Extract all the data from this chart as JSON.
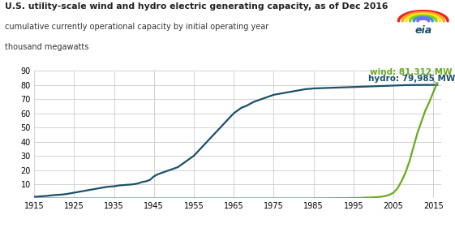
{
  "title": "U.S. utility-scale wind and hydro electric generating capacity, as of Dec 2016",
  "subtitle1": "cumulative currently operational capacity by initial operating year",
  "subtitle2": "thousand megawatts",
  "hydro_color": "#1b5068",
  "wind_color": "#6aaa1e",
  "annotation_wind": "wind: 81,312 MW",
  "annotation_hydro": "hydro: 79,985 MW",
  "xlim": [
    1915,
    2017
  ],
  "ylim": [
    0,
    90
  ],
  "yticks": [
    0,
    10,
    20,
    30,
    40,
    50,
    60,
    70,
    80,
    90
  ],
  "xticks": [
    1915,
    1925,
    1935,
    1945,
    1955,
    1965,
    1975,
    1985,
    1995,
    2005,
    2015
  ],
  "hydro_years": [
    1915,
    1916,
    1917,
    1918,
    1919,
    1920,
    1921,
    1922,
    1923,
    1924,
    1925,
    1926,
    1927,
    1928,
    1929,
    1930,
    1931,
    1932,
    1933,
    1934,
    1935,
    1936,
    1937,
    1938,
    1939,
    1940,
    1941,
    1942,
    1943,
    1944,
    1945,
    1946,
    1947,
    1948,
    1949,
    1950,
    1951,
    1952,
    1953,
    1954,
    1955,
    1956,
    1957,
    1958,
    1959,
    1960,
    1961,
    1962,
    1963,
    1964,
    1965,
    1966,
    1967,
    1968,
    1969,
    1970,
    1971,
    1972,
    1973,
    1974,
    1975,
    1976,
    1977,
    1978,
    1979,
    1980,
    1981,
    1982,
    1983,
    1984,
    1985,
    1986,
    1987,
    1988,
    1989,
    1990,
    1991,
    1992,
    1993,
    1994,
    1995,
    1996,
    1997,
    1998,
    1999,
    2000,
    2001,
    2002,
    2003,
    2004,
    2005,
    2006,
    2007,
    2008,
    2009,
    2010,
    2011,
    2012,
    2013,
    2014,
    2015,
    2016
  ],
  "hydro_values": [
    1.0,
    1.3,
    1.5,
    1.7,
    2.0,
    2.3,
    2.5,
    2.7,
    3.0,
    3.5,
    4.0,
    4.5,
    5.0,
    5.5,
    6.0,
    6.5,
    7.0,
    7.5,
    8.0,
    8.3,
    8.5,
    9.0,
    9.3,
    9.5,
    9.7,
    10.0,
    10.5,
    11.5,
    12.0,
    13.0,
    15.5,
    17.0,
    18.0,
    19.0,
    20.0,
    21.0,
    22.0,
    24.0,
    26.0,
    28.0,
    30.0,
    33.0,
    36.0,
    39.0,
    42.0,
    45.0,
    48.0,
    51.0,
    54.0,
    57.0,
    60.0,
    62.0,
    64.0,
    65.0,
    66.5,
    68.0,
    69.0,
    70.0,
    71.0,
    72.0,
    73.0,
    73.5,
    74.0,
    74.5,
    75.0,
    75.5,
    76.0,
    76.5,
    77.0,
    77.2,
    77.5,
    77.6,
    77.7,
    77.8,
    77.9,
    78.0,
    78.1,
    78.2,
    78.3,
    78.4,
    78.5,
    78.6,
    78.7,
    78.8,
    78.9,
    79.0,
    79.1,
    79.2,
    79.3,
    79.4,
    79.5,
    79.6,
    79.7,
    79.8,
    79.85,
    79.9,
    79.92,
    79.94,
    79.96,
    79.98,
    79.985,
    79.985
  ],
  "wind_years": [
    1915,
    1985,
    1986,
    1987,
    1988,
    1989,
    1990,
    1991,
    1992,
    1993,
    1994,
    1995,
    1996,
    1997,
    1998,
    1999,
    2000,
    2001,
    2002,
    2003,
    2004,
    2005,
    2006,
    2007,
    2008,
    2009,
    2010,
    2011,
    2012,
    2013,
    2014,
    2015,
    2016
  ],
  "wind_values": [
    0.0,
    0.0,
    0.05,
    0.05,
    0.05,
    0.1,
    0.1,
    0.15,
    0.15,
    0.15,
    0.2,
    0.3,
    0.3,
    0.4,
    0.5,
    0.6,
    0.7,
    0.9,
    1.2,
    1.7,
    2.5,
    4.0,
    7.0,
    12.0,
    18.0,
    26.0,
    36.0,
    46.0,
    54.0,
    62.0,
    68.0,
    75.0,
    81.312
  ],
  "background_color": "#ffffff",
  "grid_color": "#cccccc",
  "ann_wind_x": 2009.5,
  "ann_wind_y": 87,
  "ann_hydro_x": 2009.5,
  "ann_hydro_y": 82.5
}
